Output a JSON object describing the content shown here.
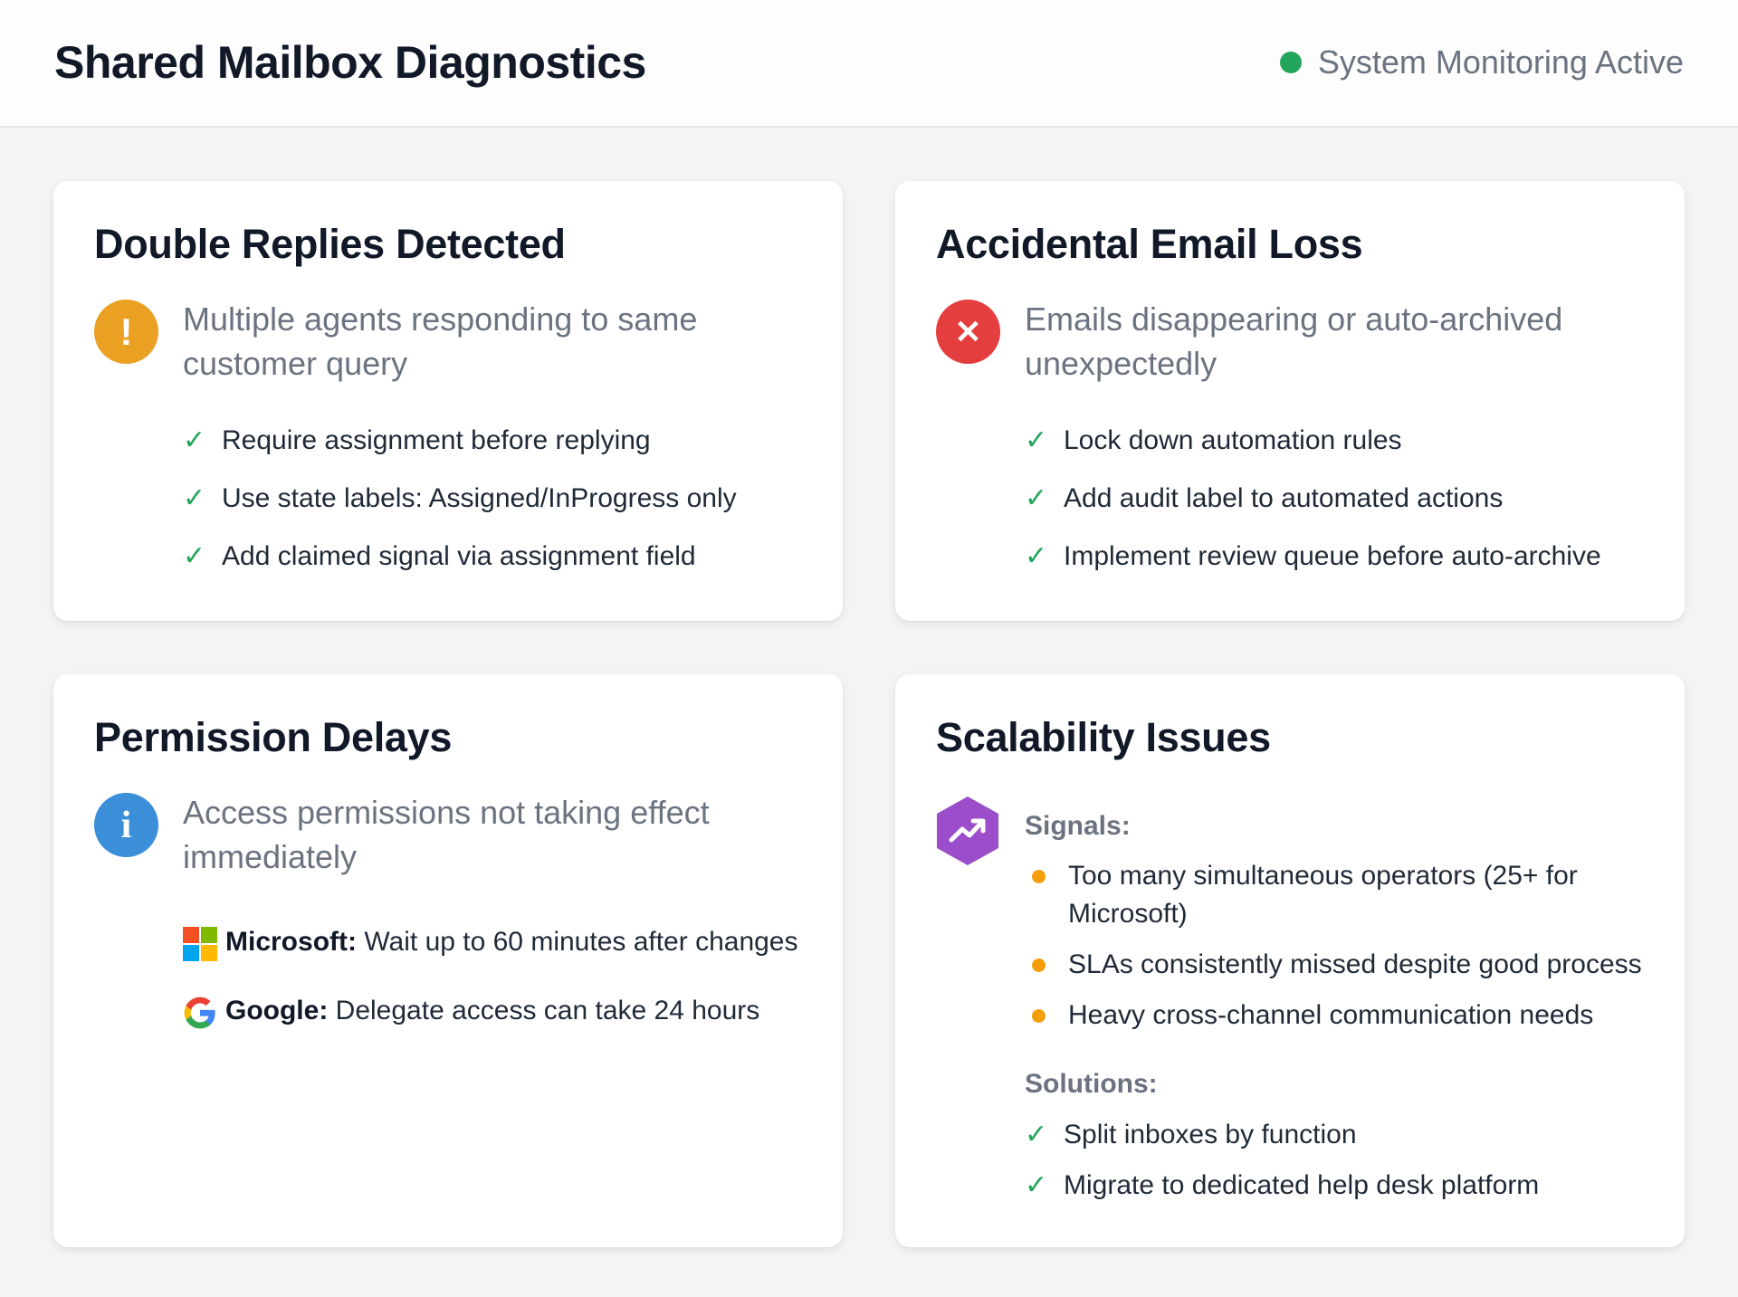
{
  "header": {
    "title": "Shared Mailbox Diagnostics",
    "status": "System Monitoring Active",
    "status_color": "#22a55a"
  },
  "cards": [
    {
      "title": "Double Replies Detected",
      "icon": "warning-icon",
      "icon_glyph": "!",
      "icon_color": "#e9a023",
      "description": "Multiple agents responding to same customer query",
      "items": [
        "Require assignment before replying",
        "Use state labels: Assigned/InProgress only",
        "Add claimed signal via assignment field"
      ]
    },
    {
      "title": "Accidental Email Loss",
      "icon": "error-icon",
      "icon_glyph": "✕",
      "icon_color": "#e53e3e",
      "description": "Emails disappearing or auto-archived unexpectedly",
      "items": [
        "Lock down automation rules",
        "Add audit label to automated actions",
        "Implement review queue before auto-archive"
      ]
    },
    {
      "title": "Permission Delays",
      "icon": "info-icon",
      "icon_glyph": "i",
      "icon_color": "#3b8fd9",
      "description": "Access permissions not taking effect immediately",
      "providers": [
        {
          "name": "Microsoft:",
          "text": "Wait up to 60 minutes after changes",
          "icon": "microsoft-logo-icon"
        },
        {
          "name": "Google:",
          "text": "Delegate access can take 24 hours",
          "icon": "google-logo-icon"
        }
      ]
    },
    {
      "title": "Scalability Issues",
      "icon": "trending-up-icon",
      "icon_color": "#9b4dca",
      "signals_label": "Signals:",
      "signals": [
        "Too many simultaneous operators (25+ for Microsoft)",
        "SLAs consistently missed despite good process",
        "Heavy cross-channel communication needs"
      ],
      "solutions_label": "Solutions:",
      "solutions": [
        "Split inboxes by function",
        "Migrate to dedicated help desk platform"
      ]
    }
  ],
  "check_glyph": "✓"
}
